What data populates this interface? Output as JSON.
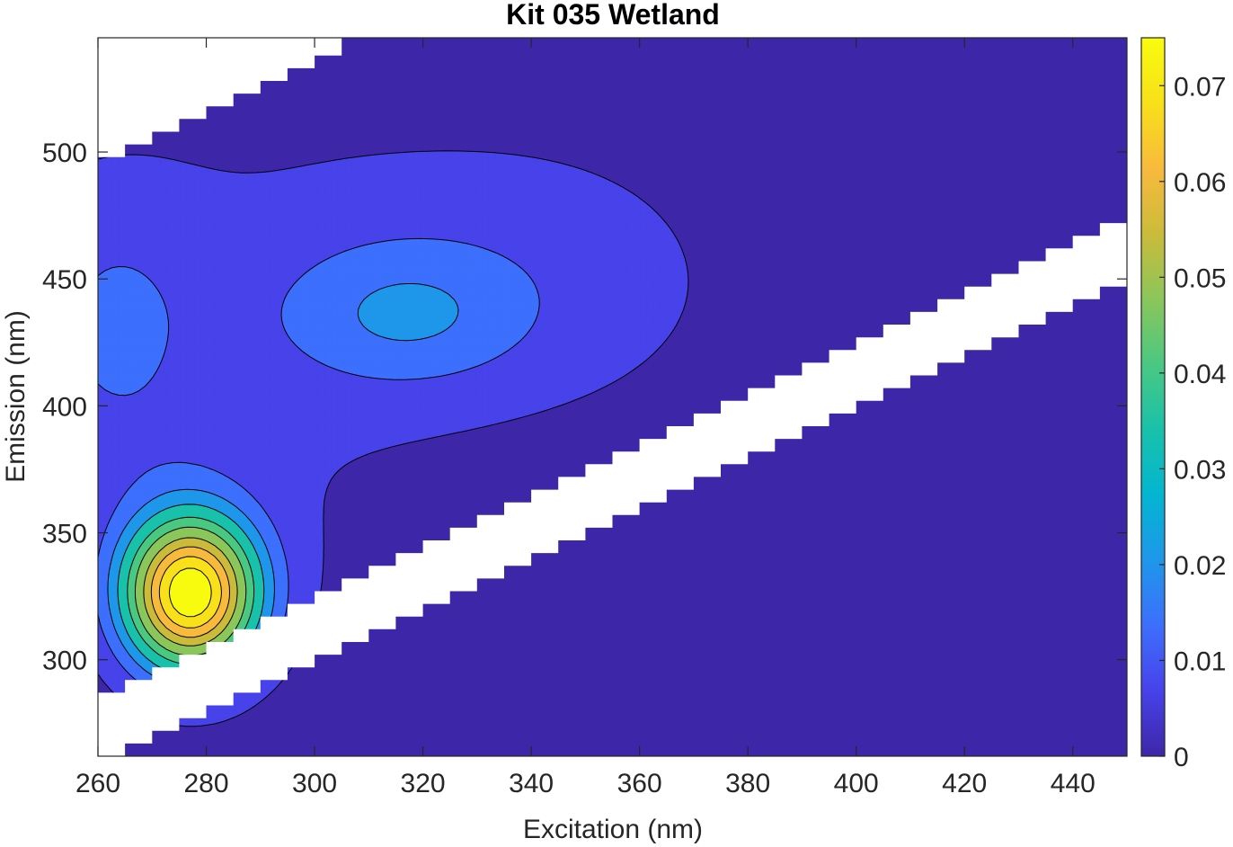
{
  "chart_data": {
    "type": "heatmap",
    "subtype": "filled-contour",
    "title": "Kit 035 Wetland",
    "xlabel": "Excitation (nm)",
    "ylabel": "Emission (nm)",
    "xlim": [
      260,
      450
    ],
    "ylim": [
      262,
      545
    ],
    "xticks": [
      "260",
      "280",
      "300",
      "320",
      "340",
      "360",
      "380",
      "400",
      "420",
      "440"
    ],
    "yticks": [
      "300",
      "350",
      "400",
      "450",
      "500"
    ],
    "colorbar": {
      "range": [
        0,
        0.075
      ],
      "ticks": [
        "0",
        "0.01",
        "0.02",
        "0.03",
        "0.04",
        "0.05",
        "0.06",
        "0.07"
      ]
    },
    "contour_levels": [
      0.005,
      0.013,
      0.02,
      0.027,
      0.035,
      0.042,
      0.05,
      0.057,
      0.064,
      0.071
    ],
    "peaks": [
      {
        "ex": 277,
        "em": 326,
        "value": 0.075,
        "sx": 9,
        "sy": 22
      },
      {
        "ex": 262,
        "em": 440,
        "value": 0.01,
        "sx": 13,
        "sy": 36
      },
      {
        "ex": 316,
        "em": 435,
        "value": 0.012,
        "sx": 16,
        "sy": 20
      },
      {
        "ex": 300,
        "em": 470,
        "value": 0.004,
        "sx": 40,
        "sy": 45
      },
      {
        "ex": 325,
        "em": 440,
        "value": 0.006,
        "sx": 30,
        "sy": 35
      },
      {
        "ex": 350,
        "em": 455,
        "value": 0.003,
        "sx": 24,
        "sy": 42
      },
      {
        "ex": 292,
        "em": 360,
        "value": 0.004,
        "sx": 22,
        "sy": 45
      },
      {
        "ex": 262,
        "em": 390,
        "value": 0.005,
        "sx": 18,
        "sy": 30
      }
    ],
    "masked_regions": [
      {
        "name": "first-order-scatter",
        "em_lower_offset": 2,
        "em_upper_offset": 27
      },
      {
        "name": "upper-left-corner",
        "em_minus_ex_over": 238
      }
    ],
    "colors": {
      "colormap": [
        "#3e26a8",
        "#4742ea",
        "#3d6ffd",
        "#1e97ea",
        "#04b5d1",
        "#19c1ab",
        "#4ac882",
        "#8bc65a",
        "#cbbb3b",
        "#f8ba3c",
        "#f8e01a",
        "#f9fb0e"
      ],
      "contour_line": "#000000",
      "mask": "#ffffff"
    }
  }
}
